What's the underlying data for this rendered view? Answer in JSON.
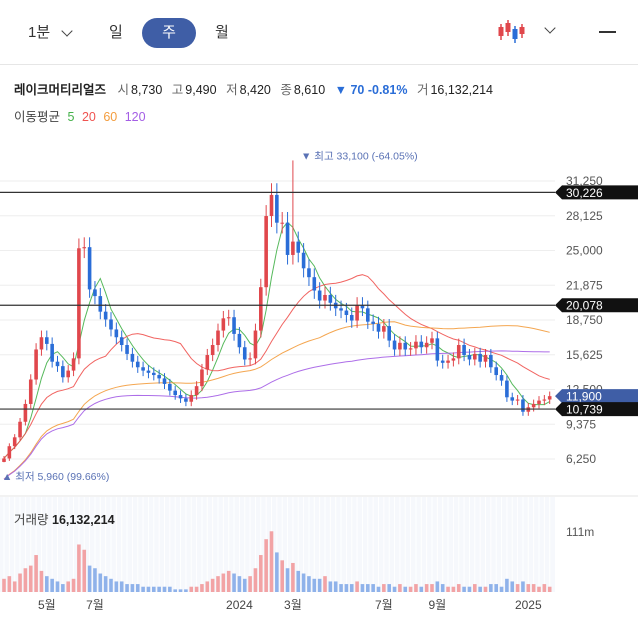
{
  "toolbar": {
    "minute_label": "1분",
    "day_label": "일",
    "week_label": "주",
    "month_label": "월"
  },
  "stock": {
    "name": "레이크머티리얼즈",
    "open_label": "시",
    "open": "8,730",
    "high_label": "고",
    "high": "9,490",
    "low_label": "저",
    "low": "8,420",
    "close_label": "종",
    "close": "8,610",
    "change": "▼ 70 -0.81%",
    "volume_label": "거",
    "volume": "16,132,214"
  },
  "moving_average": {
    "label": "이동평균",
    "periods": [
      {
        "label": "5",
        "color": "#44b14a"
      },
      {
        "label": "20",
        "color": "#ef5350"
      },
      {
        "label": "60",
        "color": "#f39c3d"
      },
      {
        "label": "120",
        "color": "#a45ee5"
      }
    ]
  },
  "chart_data": {
    "type": "candlestick",
    "y_ticks": [
      "31,250",
      "28,125",
      "25,000",
      "21,875",
      "18,750",
      "15,625",
      "12,500",
      "9,375",
      "6,250"
    ],
    "y_tick_values": [
      31250,
      28125,
      25000,
      21875,
      18750,
      15625,
      12500,
      9375,
      6250
    ],
    "x_ticks": [
      "5월",
      "7월",
      "2024",
      "3월",
      "7월",
      "9월",
      "2025"
    ],
    "x_tick_index": [
      8,
      17,
      44,
      54,
      71,
      81,
      98
    ],
    "max_annotation": "▼ 최고 33,100 (-64.05%)",
    "min_annotation": "▲ 최저 5,960 (99.66%)",
    "max_value": 33100,
    "min_value": 5960,
    "price_markers": [
      {
        "label": "30,226",
        "value": 30226,
        "style": "black"
      },
      {
        "label": "20,078",
        "value": 20078,
        "style": "black"
      },
      {
        "label": "11,900",
        "value": 11900,
        "style": "blue"
      },
      {
        "label": "10,739",
        "value": 10739,
        "style": "black"
      }
    ],
    "close": [
      6300,
      7400,
      8200,
      9600,
      11200,
      13400,
      16100,
      17200,
      16600,
      15000,
      14600,
      13600,
      14200,
      15300,
      25200,
      25300,
      21500,
      20900,
      19500,
      18800,
      17900,
      17200,
      16500,
      15700,
      15000,
      14500,
      14200,
      14000,
      13800,
      13500,
      13000,
      12400,
      12000,
      11700,
      11400,
      12000,
      12800,
      14300,
      15600,
      16500,
      17800,
      18900,
      19000,
      17500,
      16300,
      15200,
      15300,
      17800,
      21700,
      28100,
      30000,
      27500,
      27500,
      24600,
      25800,
      24800,
      23400,
      22600,
      21400,
      20500,
      21000,
      20300,
      19800,
      19600,
      19200,
      18700,
      20100,
      19800,
      18600,
      18400,
      17700,
      18200,
      16900,
      16100,
      16700,
      16100,
      16200,
      16800,
      16300,
      16700,
      17100,
      15100,
      14900,
      15100,
      15300,
      16500,
      15600,
      15200,
      15700,
      15000,
      15600,
      14500,
      13800,
      13300,
      11800,
      11500,
      11600,
      10500,
      10900,
      11200,
      11500,
      11600,
      11900
    ],
    "volume": [
      5,
      6,
      4,
      7,
      9,
      10,
      14,
      8,
      6,
      5,
      4,
      3,
      4,
      5,
      18,
      16,
      10,
      9,
      7,
      6,
      5,
      4,
      4,
      3,
      3,
      3,
      2,
      2,
      2,
      2,
      2,
      2,
      1,
      1,
      1,
      2,
      2,
      3,
      4,
      5,
      6,
      7,
      8,
      7,
      6,
      5,
      6,
      9,
      14,
      20,
      23,
      15,
      12,
      9,
      11,
      8,
      7,
      6,
      5,
      5,
      6,
      4,
      4,
      3,
      3,
      3,
      4,
      3,
      3,
      3,
      2,
      3,
      3,
      2,
      3,
      2,
      2,
      3,
      2,
      3,
      3,
      4,
      3,
      2,
      2,
      3,
      2,
      2,
      3,
      2,
      2,
      3,
      3,
      2,
      5,
      4,
      3,
      4,
      3,
      3,
      2,
      3,
      2
    ],
    "volume_tick": "111m",
    "volume_title": "거래량",
    "volume_value": "16,132,214"
  }
}
